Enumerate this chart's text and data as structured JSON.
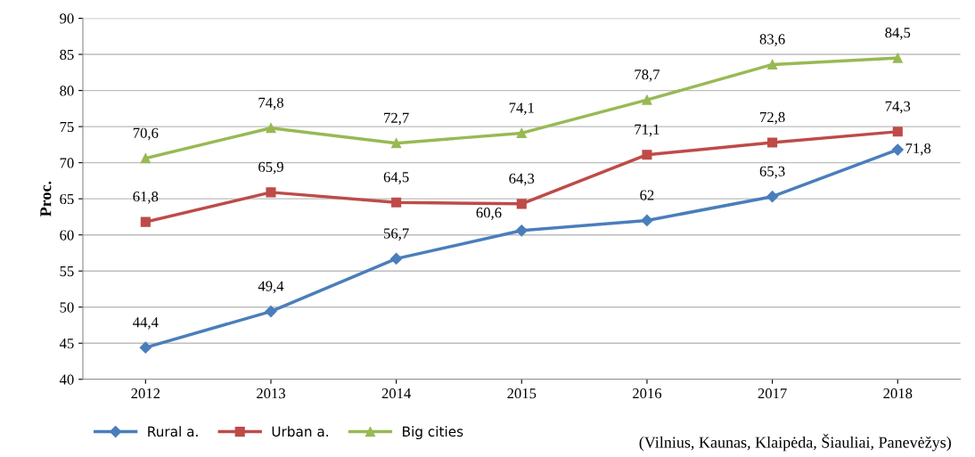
{
  "chart_data": {
    "type": "line",
    "ylabel": "Proc.",
    "categories": [
      "2012",
      "2013",
      "2014",
      "2015",
      "2016",
      "2017",
      "2018"
    ],
    "series": [
      {
        "name": "Rural a.",
        "color": "#4a7ebb",
        "marker": "diamond",
        "values": [
          44.4,
          49.4,
          56.7,
          60.6,
          62,
          65.3,
          71.8
        ],
        "value_labels": [
          "44,4",
          "49,4",
          "56,7",
          "60,6",
          "62",
          "65,3",
          "71,8"
        ]
      },
      {
        "name": "Urban a.",
        "color": "#be4b48",
        "marker": "square",
        "values": [
          61.8,
          65.9,
          64.5,
          64.3,
          71.1,
          72.8,
          74.3
        ],
        "value_labels": [
          "61,8",
          "65,9",
          "64,5",
          "64,3",
          "71,1",
          "72,8",
          "74,3"
        ]
      },
      {
        "name": "Big cities",
        "color": "#98b954",
        "marker": "triangle",
        "values": [
          70.6,
          74.8,
          72.7,
          74.1,
          78.7,
          83.6,
          84.5
        ],
        "value_labels": [
          "70,6",
          "74,8",
          "72,7",
          "74,1",
          "78,7",
          "83,6",
          "84,5"
        ]
      }
    ],
    "ylim": [
      40,
      90
    ],
    "yticks": [
      40,
      45,
      50,
      55,
      60,
      65,
      70,
      75,
      80,
      85,
      90
    ],
    "grid": "y",
    "legend": "bottom",
    "line_style": "solid",
    "annotations": [
      "(Vilnius, Kaunas, Klaipėda, Šiauliai, Panevėžys)"
    ]
  }
}
